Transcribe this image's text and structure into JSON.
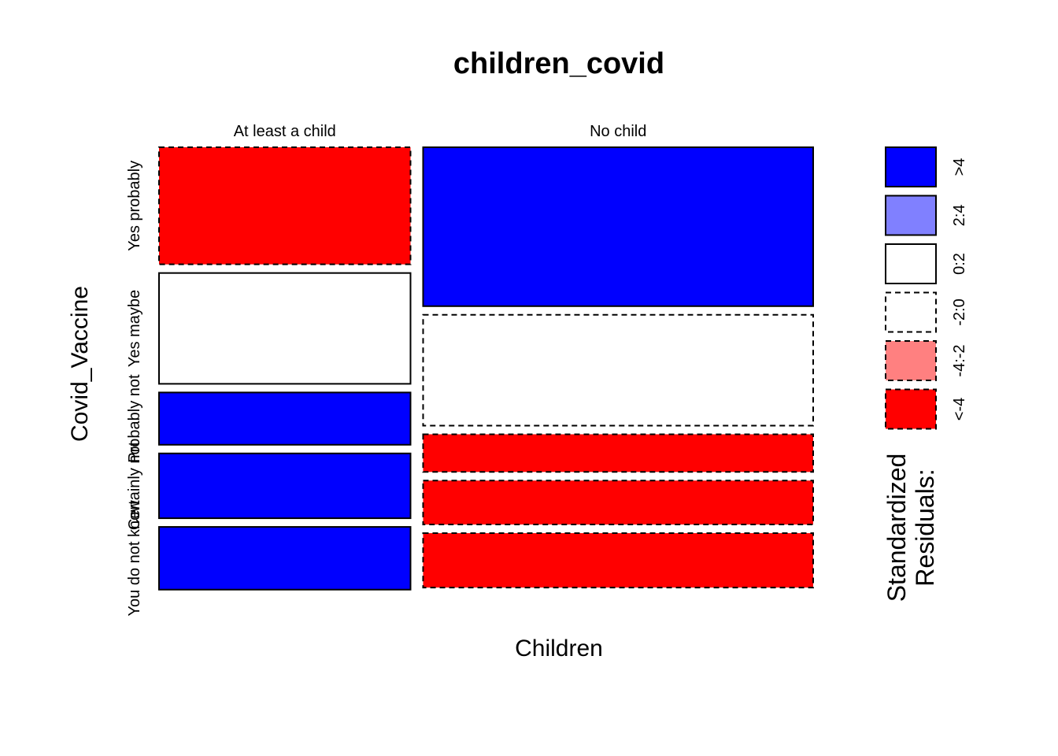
{
  "chart_data": {
    "type": "mosaic",
    "title": "children_covid",
    "xlabel": "Children",
    "ylabel": "Covid_Vaccine",
    "columns": [
      "At least a child",
      "No child"
    ],
    "column_proportions": [
      0.392,
      0.608
    ],
    "rows": [
      "Yes probably",
      "Yes maybe",
      "Probably not",
      "Certainly not",
      "You do not know"
    ],
    "cells": [
      {
        "column": "At least a child",
        "row": "Yes probably",
        "proportion": 0.28,
        "residual_class": "<-4"
      },
      {
        "column": "At least a child",
        "row": "Yes maybe",
        "proportion": 0.265,
        "residual_class": "0:2"
      },
      {
        "column": "At least a child",
        "row": "Probably not",
        "proportion": 0.125,
        "residual_class": ">4"
      },
      {
        "column": "At least a child",
        "row": "Certainly not",
        "proportion": 0.155,
        "residual_class": ">4"
      },
      {
        "column": "At least a child",
        "row": "You do not know",
        "proportion": 0.15,
        "residual_class": ">4"
      },
      {
        "column": "No child",
        "row": "Yes probably",
        "proportion": 0.38,
        "residual_class": ">4"
      },
      {
        "column": "No child",
        "row": "Yes maybe",
        "proportion": 0.265,
        "residual_class": "-2:0"
      },
      {
        "column": "No child",
        "row": "Probably not",
        "proportion": 0.09,
        "residual_class": "<-4"
      },
      {
        "column": "No child",
        "row": "Certainly not",
        "proportion": 0.105,
        "residual_class": "<-4"
      },
      {
        "column": "No child",
        "row": "You do not know",
        "proportion": 0.13,
        "residual_class": "<-4"
      }
    ],
    "legend": {
      "title_line1": "Standardized",
      "title_line2": "Residuals:",
      "entries": [
        {
          "label": ">4",
          "fill": "#0000ff",
          "dashed": false
        },
        {
          "label": "2:4",
          "fill": "#8080ff",
          "dashed": false
        },
        {
          "label": "0:2",
          "fill": "#ffffff",
          "dashed": false
        },
        {
          "label": "-2:0",
          "fill": "#ffffff",
          "dashed": true
        },
        {
          "label": "-4:-2",
          "fill": "#ff8080",
          "dashed": true
        },
        {
          "label": "<-4",
          "fill": "#ff0000",
          "dashed": true
        }
      ]
    }
  }
}
